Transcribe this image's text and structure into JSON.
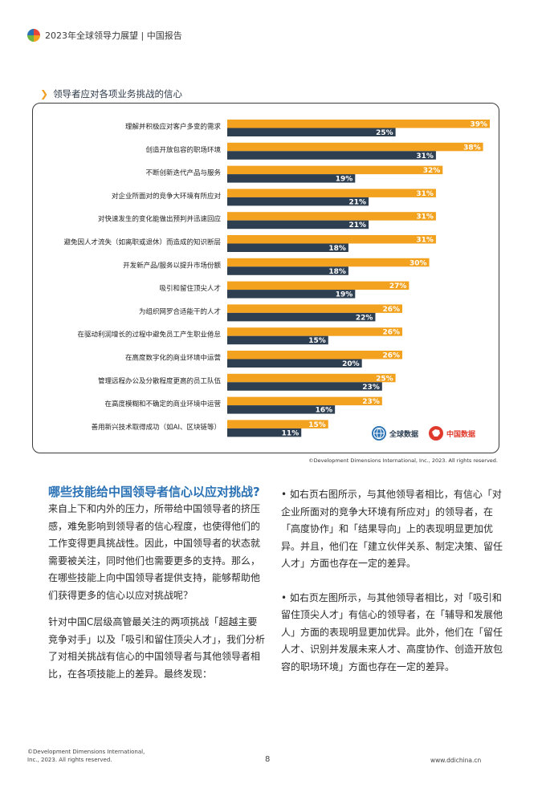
{
  "header": {
    "title": "2023年全球领导力展望 | 中国报告"
  },
  "section_title": "领导者应对各项业务挑战的信心",
  "chart_data": {
    "type": "bar",
    "orientation": "horizontal",
    "categories": [
      "理解并积极应对客户多变的需求",
      "创造开放包容的职场环境",
      "不断创新迭代产品与服务",
      "对企业所面对的竞争大环境有所应对",
      "对快速发生的变化能做出预判并迅速回应",
      "避免因人才流失（如离职或退休）而造成的知识断层",
      "开发新产品/服务以提升市场份额",
      "吸引和留住顶尖人才",
      "为组织网罗合适能干的人才",
      "在驱动利润增长的过程中避免员工产生职业倦怠",
      "在高度数字化的商业环境中运营",
      "管理远程办公及分散程度更高的员工队伍",
      "在高度模糊和不确定的商业环境中运营",
      "善用新兴技术取得成功（如AI、区块链等）"
    ],
    "series": [
      {
        "name": "中国数据",
        "color": "#f3a21f",
        "values": [
          39,
          38,
          32,
          31,
          31,
          31,
          30,
          27,
          26,
          26,
          26,
          25,
          23,
          15
        ]
      },
      {
        "name": "全球数据",
        "color": "#2e3f52",
        "values": [
          25,
          31,
          19,
          21,
          21,
          18,
          18,
          19,
          22,
          15,
          20,
          23,
          16,
          11
        ]
      }
    ],
    "value_suffix": "%",
    "xlim": [
      0,
      39
    ]
  },
  "legend": {
    "global_label": "全球数据",
    "china_label": "中国数据"
  },
  "chart_copyright": "©Development Dimensions International, Inc., 2023. All rights reserved.",
  "question": "哪些技能给中国领导者信心以应对挑战?",
  "left_paragraphs": [
    "来自上下和内外的压力，所带给中国领导者的挤压感，难免影响到领导者的信心程度，也使得他们的工作变得更具挑战性。因此，中国领导者的状态就需要被关注，同时他们也需要更多的支持。那么，在哪些技能上向中国领导者提供支持，能够帮助他们获得更多的信心以应对挑战呢？",
    "针对中国C层级高管最关注的两项挑战「超越主要竞争对手」以及「吸引和留住顶尖人才」，我们分析了对相关挑战有信心的中国领导者与其他领导者相比，在各项技能上的差异。最终发现："
  ],
  "right_paragraphs": [
    "• 如右页右图所示，与其他领导者相比，有信心「对企业所面对的竞争大环境有所应对」的领导者，在「高度协作」和「结果导向」上的表现明显更加优异。并且，他们在「建立伙伴关系、制定决策、留任人才」方面也存在一定的差异。",
    "• 如右页左图所示，与其他领导者相比，对「吸引和留住顶尖人才」有信心的领导者，在「辅导和发展他人」方面的表现明显更加优异。此外，他们在「留任人才、识别并发展未来人才、高度协作、创造开放包容的职场环境」方面也存在一定的差异。"
  ],
  "footer": {
    "copyright_line1": "©Development Dimensions International,",
    "copyright_line2": "Inc., 2023. All rights reserved.",
    "page_number": "8",
    "url": "www.ddichina.cn"
  }
}
